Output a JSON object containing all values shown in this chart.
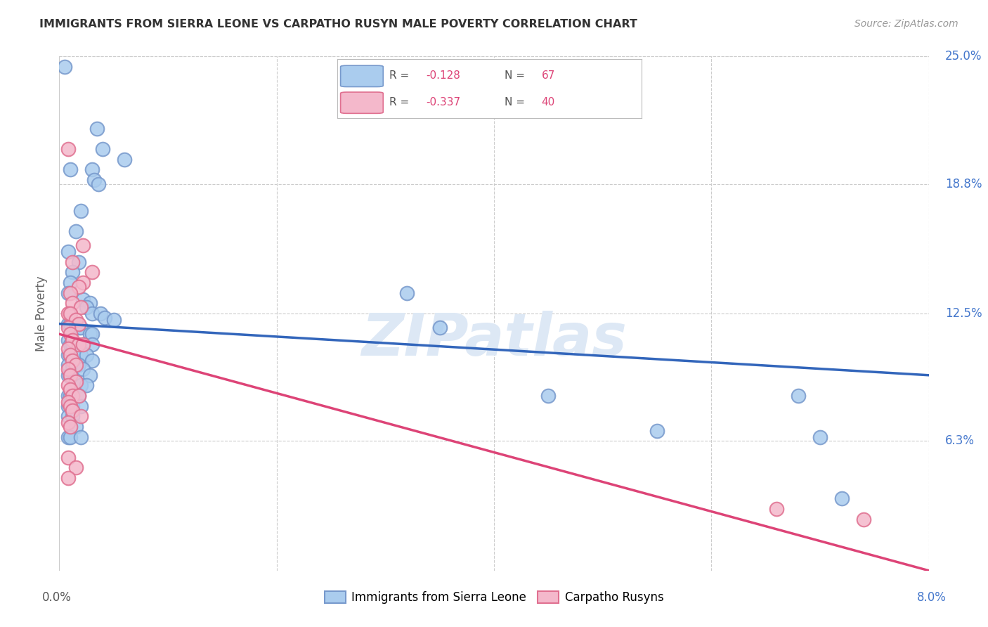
{
  "title": "IMMIGRANTS FROM SIERRA LEONE VS CARPATHO RUSYN MALE POVERTY CORRELATION CHART",
  "source": "Source: ZipAtlas.com",
  "ylabel": "Male Poverty",
  "xlim": [
    0.0,
    8.0
  ],
  "ylim": [
    0.0,
    25.0
  ],
  "grid_color": "#cccccc",
  "background_color": "#ffffff",
  "blue_color": "#aaccee",
  "pink_color": "#f4b8cb",
  "blue_edge": "#7799cc",
  "pink_edge": "#e07090",
  "line_blue": "#3366bb",
  "line_pink": "#dd4477",
  "right_label_color": "#4477cc",
  "watermark_color": "#dde8f5",
  "blue_points": [
    [
      0.05,
      24.5
    ],
    [
      0.35,
      21.5
    ],
    [
      0.4,
      20.5
    ],
    [
      0.6,
      20.0
    ],
    [
      0.1,
      19.5
    ],
    [
      0.3,
      19.5
    ],
    [
      0.32,
      19.0
    ],
    [
      0.36,
      18.8
    ],
    [
      0.2,
      17.5
    ],
    [
      0.15,
      16.5
    ],
    [
      0.08,
      15.5
    ],
    [
      0.18,
      15.0
    ],
    [
      0.12,
      14.5
    ],
    [
      0.1,
      14.0
    ],
    [
      0.08,
      13.5
    ],
    [
      0.22,
      13.2
    ],
    [
      0.28,
      13.0
    ],
    [
      0.25,
      12.8
    ],
    [
      0.3,
      12.5
    ],
    [
      0.38,
      12.5
    ],
    [
      0.42,
      12.3
    ],
    [
      0.5,
      12.2
    ],
    [
      0.08,
      12.0
    ],
    [
      0.1,
      12.0
    ],
    [
      0.15,
      12.0
    ],
    [
      0.18,
      11.8
    ],
    [
      0.2,
      11.8
    ],
    [
      0.28,
      11.5
    ],
    [
      0.3,
      11.5
    ],
    [
      0.08,
      11.2
    ],
    [
      0.1,
      11.0
    ],
    [
      0.12,
      11.0
    ],
    [
      0.22,
      11.0
    ],
    [
      0.3,
      11.0
    ],
    [
      0.08,
      10.5
    ],
    [
      0.1,
      10.5
    ],
    [
      0.2,
      10.5
    ],
    [
      0.25,
      10.5
    ],
    [
      0.3,
      10.2
    ],
    [
      0.08,
      10.0
    ],
    [
      0.12,
      10.0
    ],
    [
      0.18,
      10.0
    ],
    [
      0.22,
      9.8
    ],
    [
      0.28,
      9.5
    ],
    [
      0.08,
      9.5
    ],
    [
      0.1,
      9.5
    ],
    [
      0.15,
      9.2
    ],
    [
      0.2,
      9.0
    ],
    [
      0.25,
      9.0
    ],
    [
      0.08,
      8.5
    ],
    [
      0.1,
      8.5
    ],
    [
      0.18,
      8.5
    ],
    [
      0.08,
      8.0
    ],
    [
      0.12,
      8.0
    ],
    [
      0.2,
      8.0
    ],
    [
      0.08,
      7.5
    ],
    [
      0.12,
      7.5
    ],
    [
      0.15,
      7.0
    ],
    [
      0.08,
      6.5
    ],
    [
      0.1,
      6.5
    ],
    [
      0.2,
      6.5
    ],
    [
      3.2,
      13.5
    ],
    [
      3.5,
      11.8
    ],
    [
      4.5,
      8.5
    ],
    [
      5.5,
      6.8
    ],
    [
      6.8,
      8.5
    ],
    [
      7.0,
      6.5
    ],
    [
      7.2,
      3.5
    ]
  ],
  "pink_points": [
    [
      0.08,
      20.5
    ],
    [
      0.22,
      15.8
    ],
    [
      0.12,
      15.0
    ],
    [
      0.3,
      14.5
    ],
    [
      0.22,
      14.0
    ],
    [
      0.18,
      13.8
    ],
    [
      0.1,
      13.5
    ],
    [
      0.12,
      13.0
    ],
    [
      0.2,
      12.8
    ],
    [
      0.08,
      12.5
    ],
    [
      0.1,
      12.5
    ],
    [
      0.15,
      12.2
    ],
    [
      0.18,
      12.0
    ],
    [
      0.08,
      11.8
    ],
    [
      0.1,
      11.5
    ],
    [
      0.12,
      11.2
    ],
    [
      0.18,
      11.0
    ],
    [
      0.22,
      11.0
    ],
    [
      0.08,
      10.8
    ],
    [
      0.1,
      10.5
    ],
    [
      0.12,
      10.2
    ],
    [
      0.15,
      10.0
    ],
    [
      0.08,
      9.8
    ],
    [
      0.1,
      9.5
    ],
    [
      0.15,
      9.2
    ],
    [
      0.08,
      9.0
    ],
    [
      0.1,
      8.8
    ],
    [
      0.12,
      8.5
    ],
    [
      0.18,
      8.5
    ],
    [
      0.08,
      8.2
    ],
    [
      0.1,
      8.0
    ],
    [
      0.12,
      7.8
    ],
    [
      0.2,
      7.5
    ],
    [
      0.08,
      7.2
    ],
    [
      0.1,
      7.0
    ],
    [
      0.08,
      5.5
    ],
    [
      0.15,
      5.0
    ],
    [
      0.08,
      4.5
    ],
    [
      6.6,
      3.0
    ],
    [
      7.4,
      2.5
    ]
  ]
}
